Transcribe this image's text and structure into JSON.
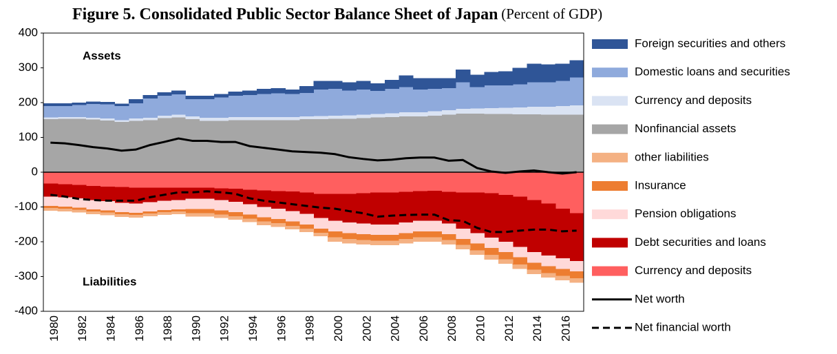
{
  "chart_data": {
    "type": "stacked_area",
    "title": "Figure 5. Consolidated Public Sector Balance Sheet of Japan",
    "subtitle": "(Percent of GDP)",
    "annotations": [
      "Assets",
      "Liabilities"
    ],
    "categories": [
      "1980",
      null,
      "1982",
      null,
      "1984",
      null,
      "1986",
      null,
      "1988",
      null,
      "1990",
      null,
      "1992",
      null,
      "1994",
      null,
      "1996",
      null,
      "1998",
      null,
      "2000",
      null,
      "2002",
      null,
      "2004",
      null,
      "2006",
      null,
      "2008",
      null,
      "2010",
      null,
      "2012",
      null,
      "2014",
      null,
      "2016",
      null
    ],
    "ylim": [
      -400,
      400
    ],
    "yticks": [
      -400,
      -300,
      -200,
      -100,
      0,
      100,
      200,
      300,
      400
    ],
    "grid": false,
    "legend": "right",
    "series": [
      {
        "name": "Currency and deposits",
        "type": "area",
        "color": "#ff5f5f",
        "values": [
          -33,
          -35,
          -37,
          -40,
          -42,
          -43,
          -45,
          -45,
          -45,
          -45,
          -45,
          -45,
          -47,
          -48,
          -50,
          -52,
          -54,
          -55,
          -58,
          -62,
          -62,
          -62,
          -60,
          -58,
          -58,
          -56,
          -54,
          -53,
          -56,
          -58,
          -58,
          -60,
          -65,
          -70,
          -80,
          -90,
          -105,
          -118
        ]
      },
      {
        "name": "Debt securities and loans",
        "type": "area",
        "color": "#c00000",
        "values": [
          -37,
          -37,
          -38,
          -40,
          -41,
          -45,
          -45,
          -41,
          -37,
          -35,
          -31,
          -31,
          -33,
          -37,
          -42,
          -48,
          -51,
          -57,
          -62,
          -70,
          -78,
          -83,
          -88,
          -92,
          -92,
          -89,
          -86,
          -87,
          -92,
          -104,
          -117,
          -128,
          -135,
          -145,
          -150,
          -150,
          -143,
          -137
        ]
      },
      {
        "name": "Pension obligations",
        "type": "area",
        "color": "#ffd9d9",
        "values": [
          -27,
          -27,
          -27,
          -27,
          -27,
          -27,
          -27,
          -27,
          -27,
          -27,
          -30,
          -30,
          -30,
          -30,
          -30,
          -30,
          -30,
          -30,
          -30,
          -30,
          -30,
          -30,
          -30,
          -30,
          -30,
          -30,
          -30,
          -30,
          -30,
          -30,
          -30,
          -30,
          -30,
          -30,
          -30,
          -30,
          -30,
          -30
        ]
      },
      {
        "name": "Insurance",
        "type": "area",
        "color": "#ed7d31",
        "values": [
          -6,
          -6,
          -6,
          -6,
          -6,
          -6,
          -6,
          -6,
          -6,
          -6,
          -12,
          -12,
          -12,
          -12,
          -12,
          -12,
          -12,
          -12,
          -12,
          -12,
          -17,
          -17,
          -17,
          -17,
          -17,
          -17,
          -17,
          -17,
          -17,
          -17,
          -20,
          -20,
          -20,
          -20,
          -20,
          -20,
          -20,
          -20
        ]
      },
      {
        "name": "other liabilities",
        "type": "area",
        "color": "#f4b183",
        "values": [
          -8,
          -8,
          -8,
          -8,
          -8,
          -8,
          -8,
          -8,
          -8,
          -8,
          -10,
          -10,
          -10,
          -10,
          -10,
          -10,
          -10,
          -10,
          -10,
          -10,
          -13,
          -13,
          -13,
          -13,
          -13,
          -13,
          -13,
          -13,
          -13,
          -13,
          -13,
          -13,
          -13,
          -13,
          -13,
          -13,
          -13,
          -13
        ]
      },
      {
        "name": "Nonfinancial assets",
        "type": "area",
        "color": "#a6a6a6",
        "values": [
          152,
          153,
          153,
          151,
          149,
          145,
          148,
          150,
          155,
          157,
          152,
          148,
          148,
          150,
          150,
          150,
          150,
          150,
          152,
          152,
          153,
          153,
          155,
          157,
          158,
          160,
          160,
          162,
          165,
          168,
          168,
          167,
          167,
          166,
          166,
          165,
          165,
          165
        ]
      },
      {
        "name": "Currency and deposits",
        "type": "area",
        "color": "#dae3f3",
        "values": [
          5,
          5,
          5,
          5,
          5,
          5,
          6,
          6,
          7,
          8,
          8,
          8,
          8,
          8,
          8,
          8,
          8,
          8,
          8,
          9,
          9,
          10,
          10,
          10,
          11,
          12,
          12,
          13,
          13,
          14,
          15,
          17,
          18,
          20,
          22,
          23,
          25,
          27
        ]
      },
      {
        "name": "Domestic loans and securities",
        "type": "area",
        "color": "#8faadc",
        "values": [
          33,
          32,
          35,
          40,
          41,
          40,
          44,
          56,
          58,
          59,
          50,
          54,
          59,
          62,
          64,
          67,
          69,
          67,
          68,
          77,
          78,
          72,
          73,
          67,
          71,
          73,
          66,
          65,
          64,
          76,
          62,
          66,
          65,
          66,
          70,
          70,
          72,
          80
        ]
      },
      {
        "name": "Foreign securities and others",
        "type": "area",
        "color": "#2f5597",
        "values": [
          8,
          8,
          7,
          7,
          7,
          7,
          12,
          10,
          10,
          11,
          10,
          10,
          10,
          12,
          13,
          15,
          15,
          13,
          20,
          24,
          22,
          23,
          24,
          21,
          25,
          33,
          32,
          30,
          28,
          37,
          35,
          38,
          40,
          48,
          54,
          52,
          50,
          50
        ]
      },
      {
        "name": "Net worth",
        "type": "line",
        "dashed": false,
        "color": "#000000",
        "values": [
          85,
          83,
          78,
          72,
          68,
          62,
          65,
          78,
          87,
          97,
          90,
          90,
          87,
          87,
          75,
          70,
          65,
          60,
          58,
          56,
          52,
          43,
          38,
          34,
          36,
          40,
          42,
          42,
          33,
          35,
          12,
          2,
          -2,
          2,
          5,
          0,
          -4,
          0
        ]
      },
      {
        "name": "Net financial worth",
        "type": "line",
        "dashed": true,
        "color": "#000000",
        "values": [
          -65,
          -70,
          -77,
          -80,
          -82,
          -82,
          -82,
          -72,
          -65,
          -58,
          -58,
          -55,
          -58,
          -62,
          -75,
          -82,
          -87,
          -92,
          -97,
          -102,
          -105,
          -112,
          -118,
          -128,
          -125,
          -123,
          -122,
          -122,
          -138,
          -140,
          -160,
          -172,
          -172,
          -168,
          -165,
          -165,
          -170,
          -168
        ]
      }
    ]
  }
}
